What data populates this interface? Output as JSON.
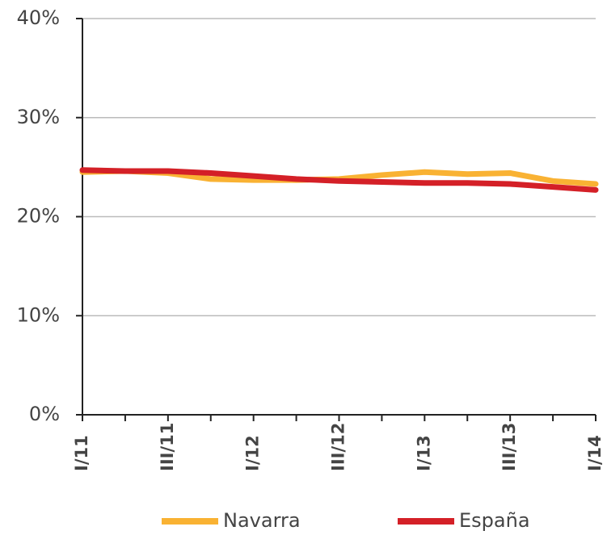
{
  "chart_data": {
    "type": "line",
    "categories": [
      "I/11",
      null,
      "III/11",
      null,
      "I/12",
      null,
      "III/12",
      null,
      "I/13",
      null,
      "III/13",
      null,
      "I/14"
    ],
    "series": [
      {
        "name": "Navarra",
        "color": "#f9b233",
        "values": [
          24.5,
          24.6,
          24.4,
          23.8,
          23.7,
          23.7,
          23.8,
          24.2,
          24.5,
          24.3,
          24.4,
          23.6,
          23.3
        ]
      },
      {
        "name": "España",
        "color": "#d42027",
        "values": [
          24.7,
          24.6,
          24.6,
          24.4,
          24.1,
          23.8,
          23.6,
          23.5,
          23.4,
          23.4,
          23.3,
          23.0,
          22.7
        ]
      }
    ],
    "ylim": [
      0,
      40
    ],
    "yticks": [
      {
        "value": 0,
        "label": "0%"
      },
      {
        "value": 10,
        "label": "10%"
      },
      {
        "value": 20,
        "label": "20%"
      },
      {
        "value": 30,
        "label": "30%"
      },
      {
        "value": 40,
        "label": "40%"
      }
    ],
    "grid": true
  }
}
